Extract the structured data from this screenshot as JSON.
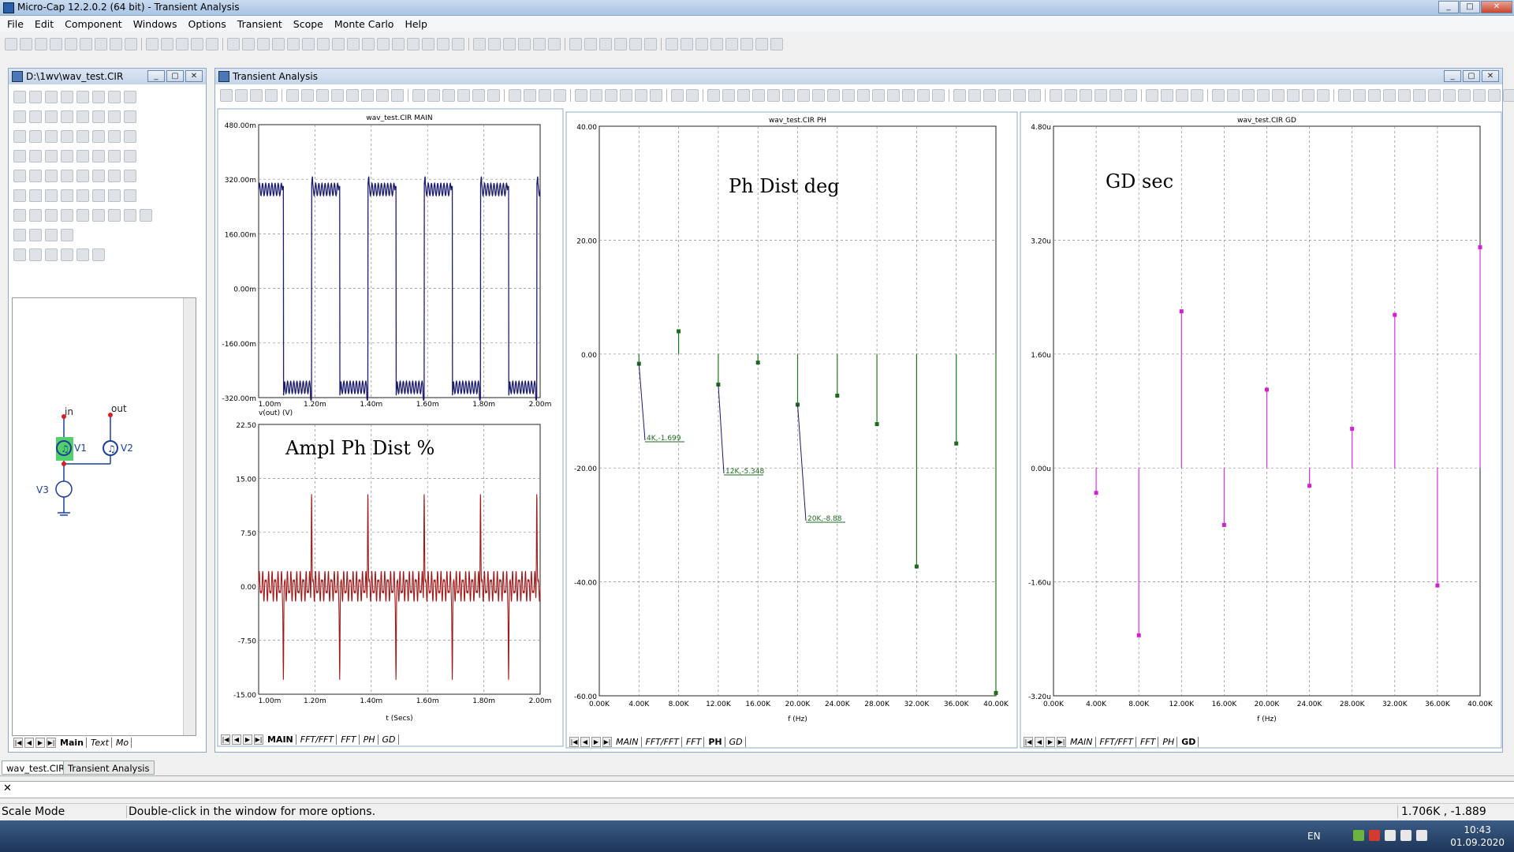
{
  "app": {
    "title": "Micro-Cap 12.2.0.2 (64 bit) - Transient Analysis"
  },
  "menu": [
    "File",
    "Edit",
    "Component",
    "Windows",
    "Options",
    "Transient",
    "Scope",
    "Monte Carlo",
    "Help"
  ],
  "schematic_window": {
    "title": "D:\\1wv\\wav_test.CIR",
    "tabs": [
      "Main",
      "Text",
      "Mo"
    ],
    "labels": {
      "in": "in",
      "out": "out",
      "v1": "V1",
      "v2": "V2",
      "v3": "V3"
    }
  },
  "analysis_window": {
    "title": "Transient Analysis"
  },
  "plots": {
    "main": {
      "title": "wav_test.CIR MAIN",
      "upper_yticks": [
        "480.00m",
        "320.00m",
        "160.00m",
        "0.00m",
        "-160.00m",
        "-320.00m"
      ],
      "upper_xticks": [
        "1.00m",
        "1.20m",
        "1.40m",
        "1.60m",
        "1.80m",
        "2.00m"
      ],
      "upper_ylabel": "v(out) (V)",
      "lower_yticks": [
        "22.50",
        "15.00",
        "7.50",
        "0.00",
        "-7.50",
        "-15.00"
      ],
      "lower_xticks": [
        "1.00m",
        "1.20m",
        "1.40m",
        "1.60m",
        "1.80m",
        "2.00m"
      ],
      "lower_xlabel": "t (Secs)",
      "lower_overlay": "Ampl Ph Dist %",
      "tabs": [
        "MAIN",
        "FFT/FFT",
        "FFT",
        "PH",
        "GD"
      ],
      "active_tab": "MAIN"
    },
    "ph": {
      "title": "wav_test.CIR PH",
      "yticks": [
        "40.00",
        "20.00",
        "0.00",
        "-20.00",
        "-40.00",
        "-60.00"
      ],
      "xticks": [
        "0.00K",
        "4.00K",
        "8.00K",
        "12.00K",
        "16.00K",
        "20.00K",
        "24.00K",
        "28.00K",
        "32.00K",
        "36.00K",
        "40.00K"
      ],
      "xlabel": "f (Hz)",
      "overlay": "Ph Dist deg",
      "annotations": [
        "4K,-1.699",
        "12K,-5.348",
        "20K,-8.88"
      ],
      "tabs": [
        "MAIN",
        "FFT/FFT",
        "FFT",
        "PH",
        "GD"
      ],
      "active_tab": "PH"
    },
    "gd": {
      "title": "wav_test.CIR GD",
      "yticks": [
        "4.80u",
        "3.20u",
        "1.60u",
        "0.00u",
        "-1.60u",
        "-3.20u"
      ],
      "xticks": [
        "0.00K",
        "4.00K",
        "8.00K",
        "12.00K",
        "16.00K",
        "20.00K",
        "24.00K",
        "28.00K",
        "32.00K",
        "36.00K",
        "40.00K"
      ],
      "xlabel": "f (Hz)",
      "overlay": "GD sec",
      "tabs": [
        "MAIN",
        "FFT/FFT",
        "FFT",
        "PH",
        "GD"
      ],
      "active_tab": "GD"
    }
  },
  "chart_data": [
    {
      "type": "line",
      "title": "wav_test.CIR MAIN",
      "ylabel": "v(out) (V)",
      "xlim": [
        0.001,
        0.002
      ],
      "ylim": [
        -0.32,
        0.48
      ],
      "description_series": "square wave approx ±0.29 V, period 0.2m"
    },
    {
      "type": "line",
      "title": "",
      "overlay": "Ampl Ph Dist %",
      "xlabel": "t (Secs)",
      "xlim": [
        0.001,
        0.002
      ],
      "ylim": [
        -15,
        22.5
      ]
    },
    {
      "type": "bar",
      "title": "wav_test.CIR PH",
      "xlabel": "f (Hz)",
      "xlim": [
        0,
        40000
      ],
      "ylim": [
        -60,
        40
      ],
      "x": [
        4000,
        8000,
        12000,
        16000,
        20000,
        24000,
        28000,
        32000,
        36000,
        40000
      ],
      "values": [
        -1.699,
        4,
        -5.348,
        -1.5,
        -8.88,
        -7.3,
        -12.3,
        -37.3,
        -15.7,
        -59.5
      ]
    },
    {
      "type": "bar",
      "title": "wav_test.CIR GD",
      "xlabel": "f (Hz)",
      "xlim": [
        0,
        40000
      ],
      "ylim": [
        -3.2,
        4.8
      ],
      "x": [
        4000,
        8000,
        12000,
        16000,
        20000,
        24000,
        28000,
        32000,
        36000,
        40000
      ],
      "values": [
        -0.35,
        -2.35,
        2.2,
        -0.8,
        1.1,
        -0.25,
        0.55,
        2.15,
        -1.65,
        3.1
      ]
    }
  ],
  "bottom_tabs": [
    "wav_test.CIR",
    "Transient Analysis"
  ],
  "status": {
    "mode": "Scale Mode",
    "hint": "Double-click in the window for more options.",
    "coords": "1.706K , -1.889"
  },
  "taskbar": {
    "lang": "EN",
    "time": "10:43",
    "date": "01.09.2020"
  }
}
